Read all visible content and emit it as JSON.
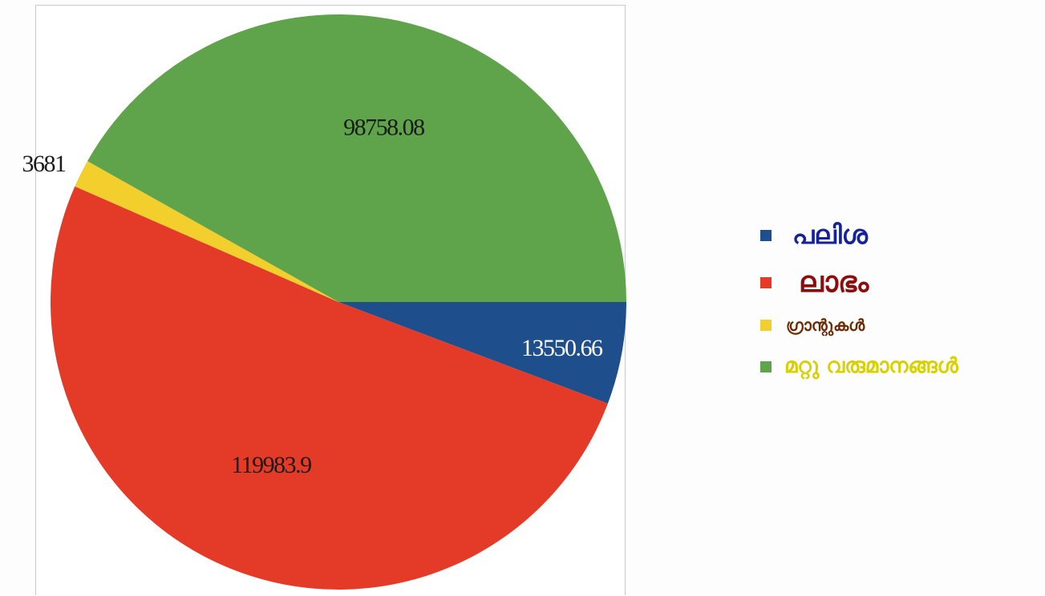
{
  "chart_data": {
    "type": "pie",
    "categories": [
      "പലിശ",
      "ലാഭം",
      "ഗ്രാന്റുകൾ",
      "മറ്റു വരുമാനങ്ങൾ"
    ],
    "values": [
      13550.66,
      119983.9,
      3681,
      98758.08
    ],
    "value_labels": [
      "13550.66",
      "119983.9",
      "3681",
      "98758.08"
    ],
    "colors": [
      "#1f4e8c",
      "#e33b28",
      "#f2cf2c",
      "#5fa34a"
    ],
    "start_angle_deg": 0,
    "direction": "clockwise",
    "legend_position": "right",
    "legend_text_colors": [
      "#15239a",
      "#8b0d0d",
      "#6b2a00",
      "#d9d000"
    ]
  }
}
